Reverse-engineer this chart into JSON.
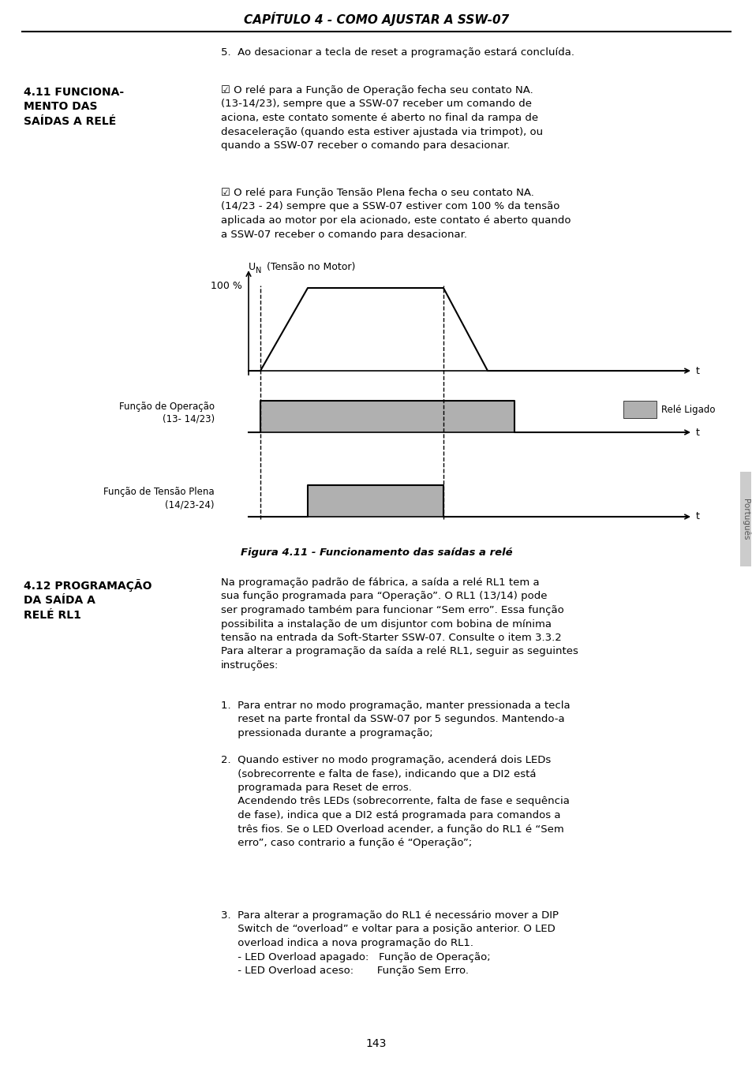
{
  "page_bg": "#ffffff",
  "title": "CAPÍTULO 4 - COMO AJUSTAR A SSW-07",
  "section_411_heading": "4.11 FUNCIONA-\nMENTO DAS\nSAÍDAS A RELÉ",
  "section_411_text1": "☑ O relé para a Função de Operação fecha seu contato NA.\n(13-14/23), sempre que a SSW-07 receber um comando de\naciona, este contato somente é aberto no final da rampa de\ndesaceleração (quando esta estiver ajustada via trimpot), ou\nquando a SSW-07 receber o comando para desacionar.",
  "section_411_text2": "☑ O relé para Função Tensão Plena fecha o seu contato NA.\n(14/23 - 24) sempre que a SSW-07 estiver com 100 % da tensão\naplicada ao motor por ela acionado, este contato é aberto quando\na SSW-07 receber o comando para desacionar.",
  "intro_text": "5.  Ao desacionar a tecla de reset a programação estará concluída.",
  "fig_caption": "Figura 4.11 - Funcionamento das saídas a relé",
  "relay_ligado_label": "Relé Ligado",
  "funcao_operacao_label": "Função de Operação\n(13- 14/23)",
  "funcao_tensao_label": "Função de Tensão Plena\n(14/23-24)",
  "tensao_motor_label": "(Tensão no Motor)",
  "pct_100_label": "100 %",
  "t_label": "t",
  "gray_color": "#b0b0b0",
  "section_412_heading": "4.12 PROGRAMAÇÃO\nDA SAÍDA A\nRELÉ RL1",
  "section_412_text": "Na programação padrão de fábrica, a saída a relé RL1 tem a\nsua função programada para “Operação”. O RL1 (13/14) pode\nser programado também para funcionar “Sem erro”. Essa função\npossibilita a instalação de um disjuntor com bobina de mínima\ntensão na entrada da Soft-Starter SSW-07. Consulte o item 3.3.2\nPara alterar a programação da saída a relé RL1, seguir as seguintes\ninstruções:",
  "item1_text": "1.  Para entrar no modo programação, manter pressionada a tecla\n     reset na parte frontal da SSW-07 por 5 segundos. Mantendo-a\n     pressionada durante a programação;",
  "item2_text": "2.  Quando estiver no modo programação, acenderá dois LEDs\n     (sobrecorrente e falta de fase), indicando que a DI2 está\n     programada para Reset de erros.\n     Acendendo três LEDs (sobrecorrente, falta de fase e sequência\n     de fase), indica que a DI2 está programada para comandos a\n     três fios. Se o LED Overload acender, a função do RL1 é “Sem\n     erro”, caso contrario a função é “Operação”;",
  "item3_text": "3.  Para alterar a programação do RL1 é necessário mover a DIP\n     Switch de “overload” e voltar para a posição anterior. O LED\n     overload indica a nova programação do RL1.\n     - LED Overload apagado:   Função de Operação;\n     - LED Overload aceso:       Função Sem Erro.",
  "page_number": "143",
  "portugues_label": "Português"
}
